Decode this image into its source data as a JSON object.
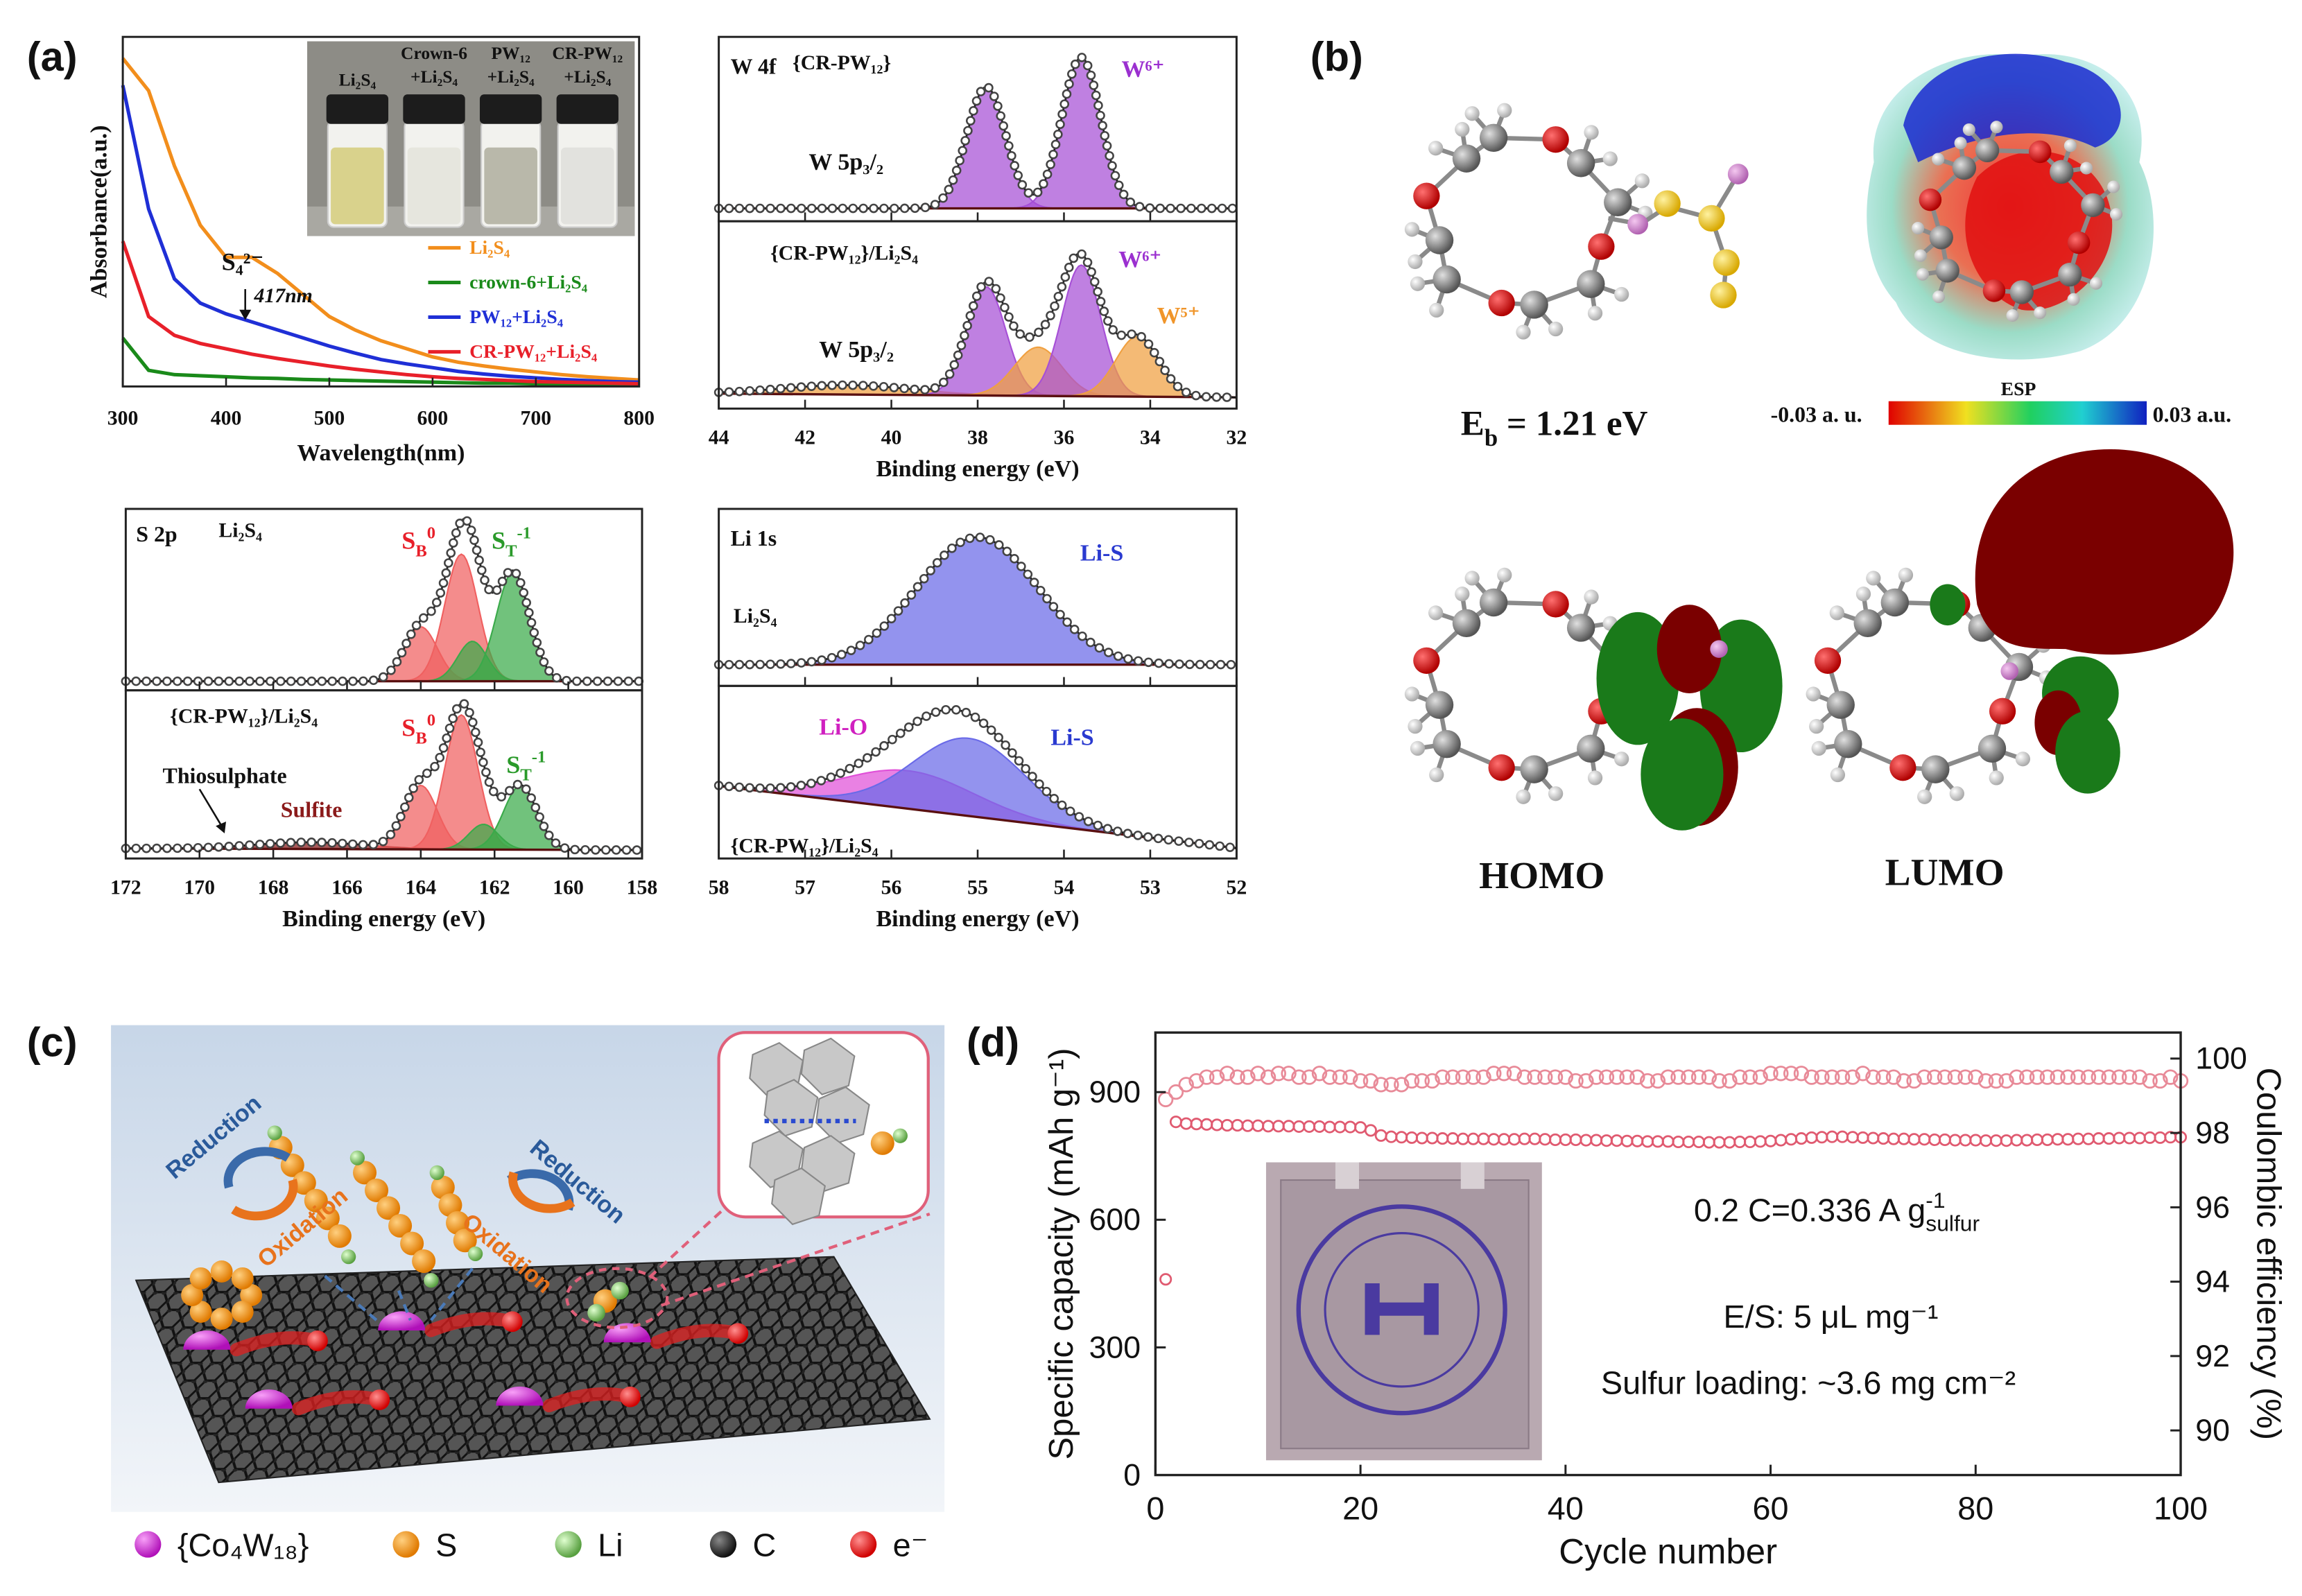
{
  "chart_data": [
    {
      "type": "line",
      "xlabel": "Wavelength(nm)",
      "ylabel": "Absorbance(a.u.)",
      "xlim": [
        300,
        800
      ],
      "xticks": [
        300,
        400,
        500,
        600,
        700,
        800
      ],
      "ylim": [
        0,
        6.5
      ],
      "x": [
        300,
        325,
        350,
        375,
        400,
        425,
        450,
        475,
        500,
        525,
        550,
        575,
        600,
        625,
        650,
        675,
        700,
        725,
        750,
        775,
        800
      ],
      "series": [
        {
          "name": "Li₂S₄",
          "color": "#f28e1c",
          "values": [
            6.1,
            5.5,
            4.1,
            3.0,
            2.4,
            2.4,
            2.1,
            1.7,
            1.3,
            1.05,
            0.85,
            0.7,
            0.55,
            0.45,
            0.38,
            0.32,
            0.27,
            0.22,
            0.18,
            0.15,
            0.12
          ]
        },
        {
          "name": "crown-6+Li₂S₄",
          "color": "#1a8a1a",
          "values": [
            0.9,
            0.3,
            0.22,
            0.2,
            0.18,
            0.16,
            0.15,
            0.13,
            0.12,
            0.11,
            0.1,
            0.09,
            0.08,
            0.07,
            0.06,
            0.06,
            0.05,
            0.05,
            0.04,
            0.04,
            0.04
          ]
        },
        {
          "name": "PW₁₂+Li₂S₄",
          "color": "#1f2fd6",
          "values": [
            5.6,
            3.3,
            2.0,
            1.55,
            1.35,
            1.2,
            1.05,
            0.9,
            0.75,
            0.62,
            0.5,
            0.42,
            0.35,
            0.28,
            0.23,
            0.19,
            0.16,
            0.13,
            0.11,
            0.09,
            0.08
          ]
        },
        {
          "name": "CR-PW₁₂+Li₂S₄",
          "color": "#e8202a",
          "values": [
            2.7,
            1.3,
            0.95,
            0.8,
            0.7,
            0.6,
            0.52,
            0.45,
            0.38,
            0.32,
            0.27,
            0.22,
            0.18,
            0.15,
            0.13,
            0.11,
            0.09,
            0.08,
            0.07,
            0.06,
            0.05
          ]
        }
      ],
      "annotations": [
        "S₄²⁻",
        "417nm"
      ],
      "inset_labels": [
        [
          "Li₂S₄"
        ],
        [
          "Crown-6",
          "+Li₂S₄"
        ],
        [
          "PW₁₂",
          "+Li₂S₄"
        ],
        [
          "CR-PW₁₂",
          "+Li₂S₄"
        ]
      ]
    },
    {
      "type": "xps",
      "xlabel": "Binding energy (eV)",
      "xlim": [
        44,
        32
      ],
      "xticks": [
        44,
        42,
        40,
        38,
        36,
        34,
        32
      ],
      "panels": [
        {
          "ylim": [
            0,
            1
          ],
          "baseline": [
            0.07,
            0.07
          ],
          "labels": [
            {
              "text": "W 4f"
            },
            {
              "text": "{CR-PW₁₂}"
            },
            {
              "text": "W⁶⁺",
              "color": "#9b30d0"
            },
            {
              "text": "W 5p₃/₂"
            }
          ],
          "peaks": [
            {
              "center": 37.8,
              "height": 0.66,
              "width": 0.45,
              "color": "#a64fd6"
            },
            {
              "center": 35.6,
              "height": 0.82,
              "width": 0.45,
              "color": "#a64fd6"
            }
          ]
        },
        {
          "ylim": [
            0,
            1
          ],
          "baseline": [
            0.08,
            0.06
          ],
          "labels": [
            {
              "text": "{CR-PW₁₂}/Li₂S₄"
            },
            {
              "text": "W⁶⁺",
              "color": "#9b30d0"
            },
            {
              "text": "W⁵⁺",
              "color": "#f0952a"
            },
            {
              "text": "W 5p₃/₂"
            }
          ],
          "peaks": [
            {
              "center": 41.0,
              "height": 0.05,
              "width": 1.5,
              "color": "#f0a040"
            },
            {
              "center": 37.8,
              "height": 0.58,
              "width": 0.45,
              "color": "#a64fd6"
            },
            {
              "center": 36.6,
              "height": 0.26,
              "width": 0.55,
              "color": "#f0a040"
            },
            {
              "center": 35.6,
              "height": 0.7,
              "width": 0.45,
              "color": "#a64fd6"
            },
            {
              "center": 34.3,
              "height": 0.32,
              "width": 0.5,
              "color": "#f0a040"
            }
          ]
        }
      ]
    },
    {
      "type": "xps",
      "xlabel": "Binding energy (eV)",
      "xlim": [
        172,
        158
      ],
      "xticks": [
        172,
        170,
        168,
        166,
        164,
        162,
        160,
        158
      ],
      "panels": [
        {
          "ylim": [
            0,
            1
          ],
          "baseline": [
            0.05,
            0.05
          ],
          "labels": [
            {
              "text": "S 2p"
            },
            {
              "text": "Li₂S₄"
            },
            {
              "text": [
                {
                  "text": "S"
                },
                {
                  "sub": "B"
                },
                {
                  "sup": "0"
                }
              ],
              "color": "#e8202a"
            },
            {
              "text": [
                {
                  "text": "S"
                },
                {
                  "sub": "T"
                },
                {
                  "sup": "-1"
                }
              ],
              "color": "#2a9a2a"
            }
          ],
          "peaks": [
            {
              "center": 164.0,
              "height": 0.3,
              "width": 0.45,
              "color": "#f06060"
            },
            {
              "center": 162.9,
              "height": 0.7,
              "width": 0.45,
              "color": "#f06060"
            },
            {
              "center": 162.6,
              "height": 0.22,
              "width": 0.4,
              "color": "#3aaa4a"
            },
            {
              "center": 161.5,
              "height": 0.6,
              "width": 0.45,
              "color": "#3aaa4a"
            }
          ]
        },
        {
          "ylim": [
            0,
            1
          ],
          "baseline": [
            0.06,
            0.05
          ],
          "labels": [
            {
              "text": "{CR-PW₁₂}/Li₂S₄"
            },
            {
              "text": [
                {
                  "text": "S"
                },
                {
                  "sub": "B"
                },
                {
                  "sup": "0"
                }
              ],
              "color": "#e8202a"
            },
            {
              "text": [
                {
                  "text": "S"
                },
                {
                  "sub": "T"
                },
                {
                  "sup": "-1"
                }
              ],
              "color": "#2a9a2a"
            },
            {
              "text": "Thiosulphate"
            },
            {
              "text": "Sulfite",
              "color": "#8b1a1a"
            }
          ],
          "peaks": [
            {
              "center": 167.0,
              "height": 0.04,
              "width": 1.5,
              "color": "#8b1a1a"
            },
            {
              "center": 164.0,
              "height": 0.38,
              "width": 0.45,
              "color": "#f06060"
            },
            {
              "center": 162.9,
              "height": 0.8,
              "width": 0.45,
              "color": "#f06060"
            },
            {
              "center": 162.3,
              "height": 0.15,
              "width": 0.4,
              "color": "#3aaa4a"
            },
            {
              "center": 161.3,
              "height": 0.38,
              "width": 0.45,
              "color": "#3aaa4a"
            }
          ]
        }
      ]
    },
    {
      "type": "xps",
      "xlabel": "Binding energy (eV)",
      "xlim": [
        58,
        52
      ],
      "xticks": [
        58,
        57,
        56,
        55,
        54,
        53,
        52
      ],
      "panels": [
        {
          "ylim": [
            0,
            1
          ],
          "baseline": [
            0.12,
            0.12
          ],
          "labels": [
            {
              "text": "Li 1s"
            },
            {
              "text": "Li₂S₄"
            },
            {
              "text": "Li-S",
              "color": "#2a3ad0"
            }
          ],
          "peaks": [
            {
              "center": 55.0,
              "height": 0.72,
              "width": 0.7,
              "color": "#6a6ae8"
            }
          ]
        },
        {
          "ylim": [
            0,
            1
          ],
          "baseline": [
            0.42,
            0.06
          ],
          "labels": [
            {
              "text": "Li-O",
              "color": "#d020c0"
            },
            {
              "text": "Li-S",
              "color": "#2a3ad0"
            },
            {
              "text": "{CR-PW₁₂}/Li₂S₄"
            }
          ],
          "peaks": [
            {
              "center": 55.8,
              "height": 0.22,
              "width": 0.75,
              "color": "#e050d8"
            },
            {
              "center": 55.1,
              "height": 0.45,
              "width": 0.65,
              "color": "#6a6ae8"
            }
          ]
        }
      ]
    },
    {
      "type": "scatter",
      "xlabel": "Cycle number",
      "ylabel": "Specific capacity (mAh g⁻¹)",
      "y2label": "Coulombic efficiency (%)",
      "xlim": [
        0,
        100
      ],
      "xticks": [
        0,
        20,
        40,
        60,
        80,
        100
      ],
      "ylim": [
        0,
        1040
      ],
      "yticks": [
        0,
        300,
        600,
        900
      ],
      "y2lim": [
        88.8,
        100.7
      ],
      "y2ticks": [
        90,
        92,
        94,
        96,
        98,
        100
      ],
      "x": [
        1,
        2,
        3,
        4,
        5,
        6,
        7,
        8,
        9,
        10,
        11,
        12,
        13,
        14,
        15,
        16,
        17,
        18,
        19,
        20,
        21,
        22,
        23,
        24,
        25,
        26,
        27,
        28,
        29,
        30,
        31,
        32,
        33,
        34,
        35,
        36,
        37,
        38,
        39,
        40,
        41,
        42,
        43,
        44,
        45,
        46,
        47,
        48,
        49,
        50,
        51,
        52,
        53,
        54,
        55,
        56,
        57,
        58,
        59,
        60,
        61,
        62,
        63,
        64,
        65,
        66,
        67,
        68,
        69,
        70,
        71,
        72,
        73,
        74,
        75,
        76,
        77,
        78,
        79,
        80,
        81,
        82,
        83,
        84,
        85,
        86,
        87,
        88,
        89,
        90,
        91,
        92,
        93,
        94,
        95,
        96,
        97,
        98,
        99,
        100
      ],
      "series": [
        {
          "color": "#e05a70",
          "values": [
            460,
            830,
            826,
            825,
            824,
            823,
            822,
            822,
            821,
            821,
            820,
            820,
            820,
            819,
            819,
            819,
            818,
            818,
            818,
            817,
            810,
            798,
            795,
            794,
            793,
            792,
            792,
            791,
            791,
            790,
            790,
            790,
            789,
            789,
            789,
            790,
            790,
            789,
            788,
            788,
            788,
            787,
            787,
            786,
            786,
            785,
            785,
            784,
            784,
            784,
            783,
            783,
            783,
            782,
            782,
            782,
            783,
            783,
            784,
            785,
            787,
            789,
            791,
            793,
            794,
            795,
            795,
            794,
            793,
            792,
            791,
            790,
            790,
            789,
            789,
            788,
            788,
            787,
            787,
            787,
            786,
            786,
            786,
            787,
            787,
            788,
            788,
            789,
            789,
            790,
            790,
            791,
            791,
            792,
            792,
            792,
            793,
            793,
            794,
            794
          ]
        },
        {
          "color": "#e88a98",
          "axis": "y2",
          "values": [
            98.9,
            99.1,
            99.3,
            99.4,
            99.5,
            99.5,
            99.6,
            99.5,
            99.5,
            99.6,
            99.5,
            99.6,
            99.6,
            99.5,
            99.5,
            99.6,
            99.5,
            99.5,
            99.5,
            99.4,
            99.4,
            99.3,
            99.3,
            99.3,
            99.4,
            99.4,
            99.4,
            99.5,
            99.5,
            99.5,
            99.5,
            99.5,
            99.6,
            99.6,
            99.6,
            99.5,
            99.5,
            99.5,
            99.5,
            99.5,
            99.4,
            99.4,
            99.5,
            99.5,
            99.5,
            99.5,
            99.5,
            99.4,
            99.4,
            99.5,
            99.5,
            99.5,
            99.5,
            99.5,
            99.4,
            99.4,
            99.5,
            99.5,
            99.5,
            99.6,
            99.6,
            99.6,
            99.6,
            99.5,
            99.5,
            99.5,
            99.5,
            99.5,
            99.6,
            99.5,
            99.5,
            99.5,
            99.4,
            99.4,
            99.5,
            99.5,
            99.5,
            99.5,
            99.5,
            99.5,
            99.4,
            99.4,
            99.4,
            99.5,
            99.5,
            99.5,
            99.5,
            99.5,
            99.5,
            99.5,
            99.5,
            99.5,
            99.5,
            99.5,
            99.5,
            99.5,
            99.4,
            99.4,
            99.5,
            99.4
          ]
        }
      ],
      "annotations": [
        [
          {
            "text": "0.2 C=0.336 A g"
          },
          {
            "sup": "-1"
          },
          {
            "sub": "sulfur"
          }
        ],
        "E/S: 5 μL mg⁻¹",
        "Sulfur loading: ~3.6 mg cm⁻²"
      ]
    }
  ],
  "figure": {
    "panel_labels": [
      "(a)",
      "(b)",
      "(c)",
      "(d)"
    ],
    "b": {
      "eb": [
        {
          "text": "E"
        },
        {
          "sub": "b"
        },
        {
          "text": " = 1.21 eV"
        }
      ],
      "esp": "ESP",
      "esp_min": "-0.03 a. u.",
      "esp_max": "0.03 a.u.",
      "homo": "HOMO",
      "lumo": "LUMO"
    },
    "c": {
      "arrow_labels": [
        "Reduction",
        "Oxidation",
        "Oxidation",
        "Reduction"
      ],
      "legend": [
        "{Co₄W₁₈}",
        "S",
        "Li",
        "C",
        "e⁻"
      ]
    }
  }
}
